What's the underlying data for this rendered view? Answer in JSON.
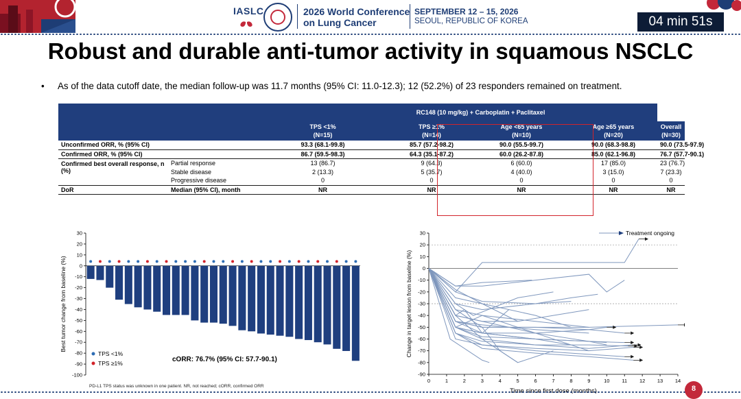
{
  "header": {
    "org": "IASLC",
    "conference_title": "2026 World Conference on Lung Cancer",
    "dates": "SEPTEMBER 12 – 15, 2026",
    "location": "SEOUL, REPUBLIC OF KOREA",
    "timer": "04 min 51s"
  },
  "slide": {
    "title": "Robust and durable anti-tumor activity in squamous NSCLC",
    "bullet": "As of the data cutoff date, the median follow-up was 11.7 months (95% CI: 11.0-12.3); 12 (52.2%) of 23 responders remained on treatment.",
    "page_number": "8",
    "footnote": "PD-L1 TPS status was unknown in one patient. NR, not reached; cORR, confirmed ORR"
  },
  "table": {
    "group_header": "RC148 (10 mg/kg) + Carboplatin + Paclitaxel",
    "columns": [
      {
        "label": "TPS <1%",
        "n": "(N=15)"
      },
      {
        "label": "TPS ≥1%",
        "n": "(N=14)"
      },
      {
        "label": "Age <65 years",
        "n": "(N=10)"
      },
      {
        "label": "Age ≥65 years",
        "n": "(N=20)"
      },
      {
        "label": "Overall",
        "n": "(N=30)"
      }
    ],
    "unconfirmed_orr": {
      "label": "Unconfirmed ORR, % (95% CI)",
      "values": [
        "93.3 (68.1-99.8)",
        "85.7 (57.2-98.2)",
        "90.0 (55.5-99.7)",
        "90.0 (68.3-98.8)",
        "90.0 (73.5-97.9)"
      ]
    },
    "confirmed_orr": {
      "label": "Confirmed ORR, % (95% CI)",
      "values": [
        "86.7 (59.5-98.3)",
        "64.3 (35.1-87.2)",
        "60.0 (26.2-87.8)",
        "85.0 (62.1-96.8)",
        "76.7 (57.7-90.1)"
      ]
    },
    "bor": {
      "label": "Confirmed best overall response, n (%)",
      "rows": [
        {
          "label": "Partial response",
          "values": [
            "13 (86.7)",
            "9 (64.3)",
            "6 (60.0)",
            "17 (85.0)",
            "23 (76.7)"
          ]
        },
        {
          "label": "Stable disease",
          "values": [
            "2 (13.3)",
            "5 (35.7)",
            "4 (40.0)",
            "3 (15.0)",
            "7 (23.3)"
          ]
        },
        {
          "label": "Progressive disease",
          "values": [
            "0",
            "0",
            "0",
            "0",
            "0"
          ]
        }
      ]
    },
    "dor": {
      "label": "DoR",
      "sub": "Median (95% CI), month",
      "values": [
        "NR",
        "NR",
        "NR",
        "NR",
        "NR"
      ]
    }
  },
  "chart_data": [
    {
      "type": "bar",
      "ylabel": "Best tumor change from baseline (%)",
      "ylim": [
        -100,
        30
      ],
      "yticks": [
        "30",
        "20",
        "10",
        "0",
        "-10",
        "-20",
        "-30",
        "-40",
        "-50",
        "-60",
        "-70",
        "-80",
        "-90",
        "-100"
      ],
      "values": [
        -12,
        -13,
        -20,
        -31,
        -35,
        -38,
        -40,
        -42,
        -45,
        -45,
        -45,
        -50,
        -52,
        -52,
        -53,
        -55,
        -59,
        -60,
        -62,
        -63,
        -64,
        -65,
        -67,
        -68,
        -70,
        -72,
        -76,
        -78,
        -87
      ],
      "tps_colors": [
        "#2e6db4",
        "#d2232a",
        "#2e6db4",
        "#d2232a",
        "#2e6db4",
        "#2e6db4",
        "#d2232a",
        "#2e6db4",
        "#d2232a",
        "#2e6db4",
        "#2e6db4",
        "#2e6db4",
        "#d2232a",
        "#2e6db4",
        "#2e6db4",
        "#d2232a",
        "#2e6db4",
        "#d2232a",
        "#2e6db4",
        "#2e6db4",
        "#d2232a",
        "#2e6db4",
        "#d2232a",
        "#2e6db4",
        "#d2232a",
        "#2e6db4",
        "#d2232a",
        "#2e6db4",
        "#2e6db4"
      ],
      "legend": [
        {
          "name": "TPS <1%",
          "color": "#2e6db4"
        },
        {
          "name": "TPS ≥1%",
          "color": "#d2232a"
        }
      ],
      "annotation": "cORR: 76.7% (95% CI: 57.7-90.1)",
      "bar_color": "#1f3f7f",
      "grid": false
    },
    {
      "type": "line",
      "xlabel": "Time since first dose (months)",
      "ylabel": "Change in target lesion from baseline (%)",
      "xlim": [
        0,
        14
      ],
      "ylim": [
        -90,
        30
      ],
      "xticks": [
        "0",
        "1",
        "2",
        "3",
        "4",
        "5",
        "6",
        "7",
        "8",
        "9",
        "10",
        "11",
        "12",
        "13",
        "14"
      ],
      "yticks": [
        "30",
        "20",
        "10",
        "0",
        "-10",
        "-20",
        "-30",
        "-40",
        "-50",
        "-60",
        "-70",
        "-80",
        "-90"
      ],
      "ref_lines": [
        20,
        -30
      ],
      "legend": "Treatment ongoing",
      "line_color": "#7f97bd",
      "series": [
        {
          "x": [
            0,
            1.5,
            3,
            6,
            9,
            11,
            11.8
          ],
          "y": [
            0,
            -20,
            5,
            5,
            5,
            5,
            25
          ]
        },
        {
          "x": [
            0,
            1.5,
            3,
            6,
            9,
            10,
            11
          ],
          "y": [
            0,
            -15,
            -15,
            -10,
            -5,
            -20,
            -10
          ]
        },
        {
          "x": [
            0,
            1.5,
            3,
            5.8
          ],
          "y": [
            0,
            -15,
            -12,
            -10
          ]
        },
        {
          "x": [
            0,
            1.5,
            3,
            6,
            8,
            9.5
          ],
          "y": [
            0,
            -30,
            -35,
            -30,
            -25,
            -22
          ]
        },
        {
          "x": [
            0,
            1.5,
            3,
            5,
            7,
            9
          ],
          "y": [
            0,
            -40,
            -45,
            -45,
            -40,
            -35
          ]
        },
        {
          "x": [
            0,
            1.5,
            3,
            6,
            9,
            11
          ],
          "y": [
            0,
            -45,
            -50,
            -50,
            -52,
            -55
          ]
        },
        {
          "x": [
            0,
            1.5,
            3,
            6,
            9,
            14
          ],
          "y": [
            0,
            -45,
            -50,
            -50,
            -50,
            -48
          ]
        },
        {
          "x": [
            0,
            1.5,
            3,
            6,
            9,
            10
          ],
          "y": [
            0,
            -45,
            -55,
            -55,
            -52,
            -50
          ]
        },
        {
          "x": [
            0,
            1.5,
            3,
            6,
            9,
            11
          ],
          "y": [
            0,
            -50,
            -58,
            -60,
            -62,
            -63
          ]
        },
        {
          "x": [
            0,
            1.5,
            3,
            6,
            9,
            11.2
          ],
          "y": [
            0,
            -55,
            -62,
            -65,
            -65,
            -66
          ]
        },
        {
          "x": [
            0,
            1.5,
            3,
            6,
            9,
            11.4
          ],
          "y": [
            0,
            -50,
            -60,
            -65,
            -68,
            -65
          ]
        },
        {
          "x": [
            0,
            1.5,
            3,
            6,
            9,
            11.5
          ],
          "y": [
            0,
            -55,
            -65,
            -68,
            -70,
            -67
          ]
        },
        {
          "x": [
            0,
            1.5,
            3,
            6,
            9,
            11
          ],
          "y": [
            0,
            -60,
            -65,
            -70,
            -73,
            -75
          ]
        },
        {
          "x": [
            0,
            1.5,
            3,
            6,
            9,
            11.5
          ],
          "y": [
            0,
            -55,
            -68,
            -72,
            -75,
            -78
          ]
        },
        {
          "x": [
            0,
            1.5,
            3,
            6,
            9,
            10
          ],
          "y": [
            0,
            -50,
            -55,
            -60,
            -62,
            -63
          ]
        },
        {
          "x": [
            0,
            1.5,
            3,
            6,
            9,
            10
          ],
          "y": [
            0,
            -40,
            -45,
            -55,
            -62,
            -65
          ]
        },
        {
          "x": [
            0,
            1.5,
            3,
            6,
            9
          ],
          "y": [
            0,
            -35,
            -40,
            -55,
            -70
          ]
        },
        {
          "x": [
            0,
            1.5,
            3,
            6,
            8
          ],
          "y": [
            0,
            -50,
            -55,
            -60,
            -65
          ]
        },
        {
          "x": [
            0,
            1.2,
            3,
            3.4
          ],
          "y": [
            0,
            -60,
            -78,
            -80
          ]
        },
        {
          "x": [
            0,
            1.5,
            3,
            5,
            6,
            7
          ],
          "y": [
            0,
            -40,
            -60,
            -80,
            -75,
            -70
          ]
        },
        {
          "x": [
            0,
            1.5,
            3,
            4,
            5
          ],
          "y": [
            0,
            -35,
            -50,
            -70,
            -80
          ]
        },
        {
          "x": [
            0,
            1.5,
            2,
            3,
            4.5
          ],
          "y": [
            0,
            -40,
            -35,
            -55,
            -35
          ]
        },
        {
          "x": [
            0,
            1.5,
            2.5,
            5,
            7
          ],
          "y": [
            0,
            -30,
            -40,
            -25,
            -20
          ]
        },
        {
          "x": [
            0,
            1.5,
            3,
            6,
            7,
            8
          ],
          "y": [
            0,
            -25,
            -30,
            -40,
            -45,
            -50
          ]
        },
        {
          "x": [
            0,
            1.5,
            3,
            6,
            8
          ],
          "y": [
            0,
            -20,
            -28,
            -30,
            -28
          ]
        },
        {
          "x": [
            0,
            1.5,
            3,
            5
          ],
          "y": [
            0,
            -18,
            -30,
            -45
          ]
        },
        {
          "x": [
            0,
            1.5,
            3,
            6,
            9
          ],
          "y": [
            0,
            -45,
            -48,
            -52,
            -55
          ]
        },
        {
          "x": [
            0,
            1.5,
            3,
            6,
            9
          ],
          "y": [
            0,
            -50,
            -40,
            -45,
            -50
          ]
        }
      ],
      "arrows": [
        [
          11.8,
          25
        ],
        [
          11,
          -55
        ],
        [
          14,
          -48
        ],
        [
          10,
          -50
        ],
        [
          11,
          -63
        ],
        [
          11.2,
          -66
        ],
        [
          11.4,
          -65
        ],
        [
          11.5,
          -67
        ],
        [
          11,
          -75
        ],
        [
          11.5,
          -78
        ]
      ]
    }
  ]
}
